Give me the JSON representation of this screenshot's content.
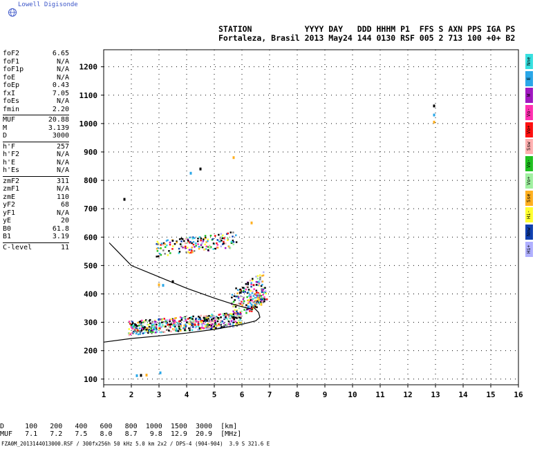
{
  "logo": {
    "text": "Lowell Digisonde"
  },
  "header": {
    "line1": "STATION           YYYY DAY   DDD HHHM P1  FFS S AXN PPS IGA PS",
    "line2": "Fortaleza, Brasil 2013 May24 144 0130 RSF 005 2 713 100 +0+ B2"
  },
  "params": [
    {
      "k": "foF2",
      "v": "6.65"
    },
    {
      "k": "foF1",
      "v": "N/A"
    },
    {
      "k": "foF1p",
      "v": "N/A"
    },
    {
      "k": "foE",
      "v": "N/A"
    },
    {
      "k": "foEp",
      "v": "0.43"
    },
    {
      "k": "fxI",
      "v": "7.05"
    },
    {
      "k": "foEs",
      "v": "N/A"
    },
    {
      "k": "fmin",
      "v": "2.20"
    },
    {
      "sep": true
    },
    {
      "k": "MUF",
      "v": "20.88"
    },
    {
      "k": "M",
      "v": "3.139"
    },
    {
      "k": "D",
      "v": "3000"
    },
    {
      "sep": true
    },
    {
      "k": "h'F",
      "v": "257"
    },
    {
      "k": "h'F2",
      "v": "N/A"
    },
    {
      "k": "h'E",
      "v": "N/A"
    },
    {
      "k": "h'Es",
      "v": "N/A"
    },
    {
      "sep": true
    },
    {
      "k": "zmF2",
      "v": "311"
    },
    {
      "k": "zmF1",
      "v": "N/A"
    },
    {
      "k": "zmE",
      "v": "110"
    },
    {
      "k": "yF2",
      "v": "68"
    },
    {
      "k": "yF1",
      "v": "N/A"
    },
    {
      "k": "yE",
      "v": "20"
    },
    {
      "k": "B0",
      "v": "61.8"
    },
    {
      "k": "B1",
      "v": "3.19"
    },
    {
      "sep": true
    },
    {
      "k": "C-level",
      "v": "11"
    }
  ],
  "legend": [
    {
      "label": "Nne",
      "color": "#38e0e0"
    },
    {
      "label": "E",
      "color": "#2aa7e8"
    },
    {
      "label": "W",
      "color": "#a018c0"
    },
    {
      "label": "Vo-",
      "color": "#ff30b0"
    },
    {
      "label": "Vo+",
      "color": "#ff1010"
    },
    {
      "label": "Ssw",
      "color": "#ffb0b0"
    },
    {
      "label": "Vo-",
      "color": "#20c020"
    },
    {
      "label": "Vo+",
      "color": "#a0f0a0"
    },
    {
      "label": "Sse",
      "color": "#ffb020"
    },
    {
      "label": "Hi-",
      "color": "#ffff30"
    },
    {
      "label": "Nnw",
      "color": "#1040b0"
    },
    {
      "label": "Hi+",
      "color": "#b0b0ff"
    }
  ],
  "bottom": {
    "line1": "D     100   200   400   600   800  1000  1500  3000  [km]",
    "line2": "MUF   7.1   7.2   7.5   8.0   8.7   9.8  12.9  20.9  [MHz]"
  },
  "footer": "FZA0M_2013144013000.RSF / 300fx256h 50 kHz 5.0 km 2x2 / DPS-4 (904-904)  3.9 S 321.6 E",
  "chart_data": {
    "type": "scatter",
    "xlim": [
      1,
      16
    ],
    "ylim": [
      80,
      1260
    ],
    "x_ticks": [
      1,
      2,
      3,
      4,
      5,
      6,
      7,
      8,
      9,
      10,
      11,
      12,
      13,
      14,
      15,
      16
    ],
    "y_ticks": [
      100,
      200,
      300,
      400,
      500,
      600,
      700,
      800,
      900,
      1000,
      1100,
      1200
    ],
    "grid": true,
    "curves": [
      {
        "name": "trace-lower",
        "points": [
          [
            1,
            230
          ],
          [
            2,
            243
          ],
          [
            3,
            252
          ],
          [
            4,
            262
          ],
          [
            5,
            275
          ],
          [
            6,
            293
          ],
          [
            6.5,
            305
          ],
          [
            6.65,
            318
          ],
          [
            6.6,
            335
          ],
          [
            6.4,
            355
          ]
        ]
      },
      {
        "name": "trace-upper",
        "points": [
          [
            1.2,
            580
          ],
          [
            1.5,
            550
          ],
          [
            2,
            500
          ],
          [
            3,
            460
          ],
          [
            4,
            420
          ],
          [
            5,
            385
          ],
          [
            5.8,
            360
          ],
          [
            6.2,
            350
          ],
          [
            6.4,
            345
          ]
        ]
      }
    ],
    "echo_clusters": [
      {
        "x": [
          1.9,
          6.0
        ],
        "y": [
          255,
          345
        ],
        "n": 520
      },
      {
        "x": [
          5.6,
          6.8
        ],
        "y": [
          300,
          500
        ],
        "n": 160
      },
      {
        "x": [
          6.2,
          6.9
        ],
        "y": [
          330,
          440
        ],
        "n": 90
      },
      {
        "x": [
          2.9,
          5.8
        ],
        "y": [
          530,
          630
        ],
        "n": 170
      }
    ],
    "echo_points": [
      {
        "x": 2.2,
        "y": 112
      },
      {
        "x": 2.35,
        "y": 113
      },
      {
        "x": 2.55,
        "y": 114
      },
      {
        "x": 3.05,
        "y": 122
      },
      {
        "x": 1.75,
        "y": 733
      },
      {
        "x": 5.7,
        "y": 880
      },
      {
        "x": 4.15,
        "y": 825
      },
      {
        "x": 4.5,
        "y": 840
      },
      {
        "x": 12.95,
        "y": 1005
      },
      {
        "x": 12.95,
        "y": 1030
      },
      {
        "x": 12.95,
        "y": 1062
      },
      {
        "x": 3.0,
        "y": 432
      },
      {
        "x": 3.15,
        "y": 430
      },
      {
        "x": 3.5,
        "y": 443
      },
      {
        "x": 6.35,
        "y": 650
      }
    ]
  }
}
